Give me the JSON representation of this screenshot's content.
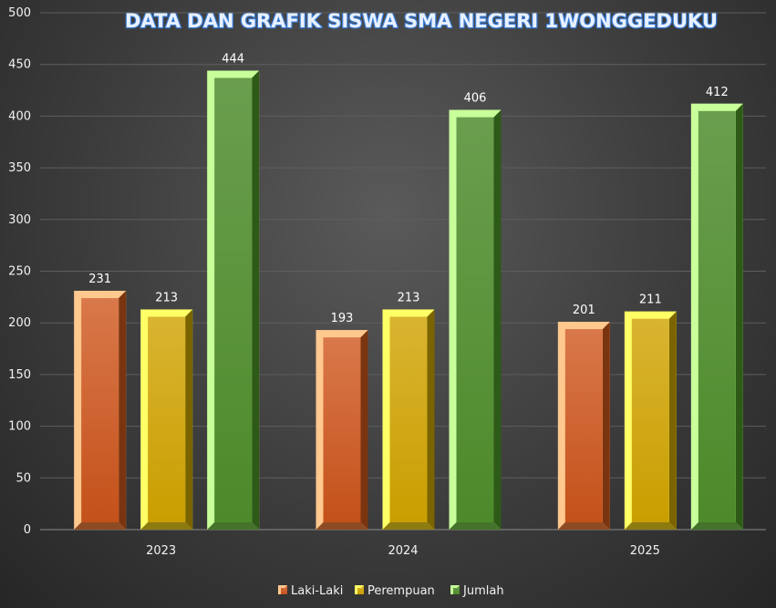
{
  "chart_data": {
    "type": "bar",
    "title": "DATA DAN GRAFIK SISWA SMA NEGERI 1WONGGEDUKU",
    "xlabel": "",
    "ylabel": "",
    "categories": [
      "2023",
      "2024",
      "2025"
    ],
    "ylim": [
      0,
      500
    ],
    "yticks": [
      0,
      50,
      100,
      150,
      200,
      250,
      300,
      350,
      400,
      450,
      500
    ],
    "grid": true,
    "legend": "bottom",
    "series": [
      {
        "name": "Laki-Laki",
        "values": [
          231,
          193,
          201
        ],
        "color": "#d2691e"
      },
      {
        "name": "Perempuan",
        "values": [
          213,
          213,
          211
        ],
        "color": "#d4a800"
      },
      {
        "name": "Jumlah",
        "values": [
          444,
          406,
          412
        ],
        "color": "#5a9a3a"
      }
    ]
  }
}
